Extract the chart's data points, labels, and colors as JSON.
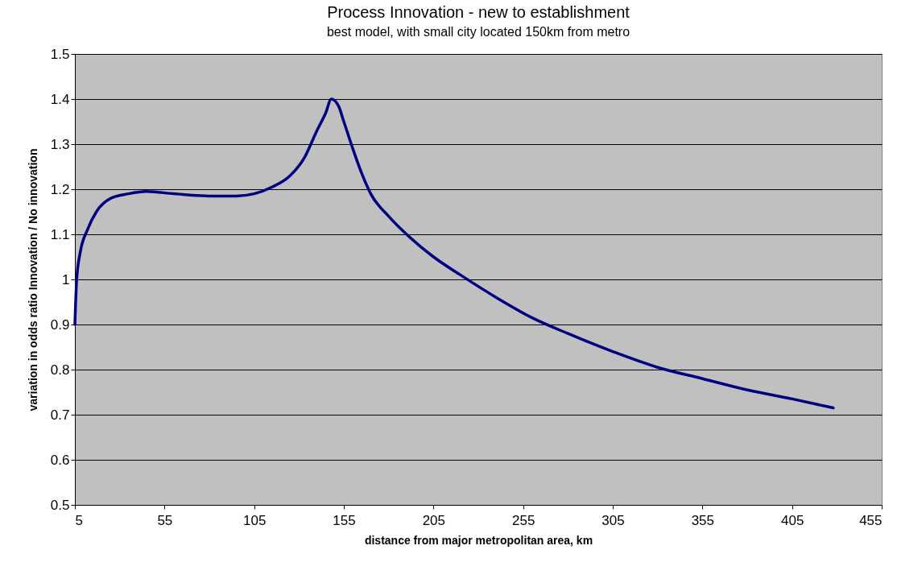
{
  "chart_data": {
    "type": "line",
    "title": "Process Innovation - new to establishment",
    "subtitle": "best model, with small city located 150km from metro",
    "xlabel": "distance from major metropolitan area, km",
    "ylabel": "variation in odds ratio Innovation / No innovation",
    "x": [
      5,
      6,
      8,
      12,
      17,
      25,
      35,
      45,
      60,
      80,
      95,
      105,
      115,
      125,
      133,
      140,
      145,
      148,
      152,
      155,
      160,
      165,
      170,
      180,
      190,
      205,
      220,
      240,
      260,
      280,
      305,
      330,
      355,
      380,
      405,
      428
    ],
    "series": [
      {
        "color": "#000080",
        "values": [
          0.9,
          1.0,
          1.06,
          1.11,
          1.15,
          1.18,
          1.19,
          1.195,
          1.19,
          1.185,
          1.185,
          1.19,
          1.205,
          1.23,
          1.27,
          1.33,
          1.37,
          1.4,
          1.385,
          1.35,
          1.29,
          1.235,
          1.19,
          1.14,
          1.1,
          1.05,
          1.01,
          0.96,
          0.915,
          0.88,
          0.84,
          0.805,
          0.78,
          0.755,
          0.735,
          0.715
        ]
      }
    ],
    "xlim": [
      5,
      455
    ],
    "xticks": [
      5,
      55,
      105,
      155,
      205,
      255,
      305,
      355,
      405,
      455
    ],
    "ylim": [
      0.5,
      1.5
    ],
    "yticks": [
      0.5,
      0.6,
      0.7,
      0.8,
      0.9,
      1,
      1.1,
      1.2,
      1.3,
      1.4,
      1.5
    ],
    "grid": "y",
    "marker": "none",
    "line_style": "solid"
  }
}
